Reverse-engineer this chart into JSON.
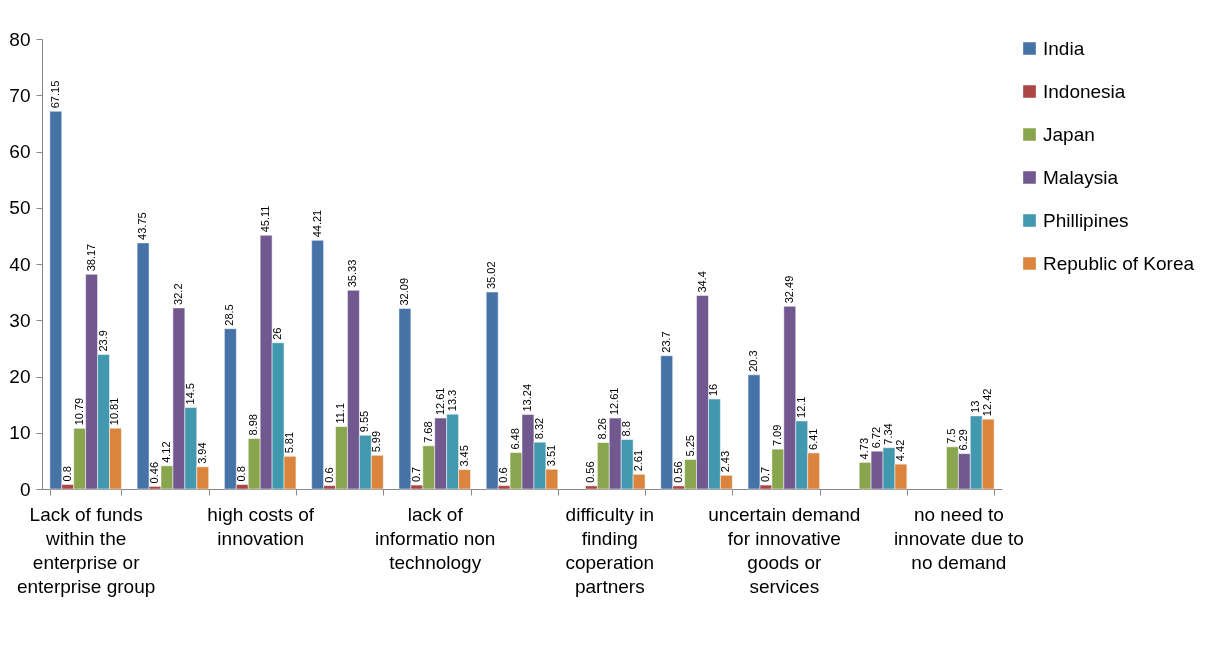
{
  "chart_data": {
    "type": "bar",
    "categories": [
      "Lack of funds within the enterprise or enterprise group",
      null,
      "high costs of innovation",
      null,
      "lack of informatio non technology",
      null,
      "difficulty in finding coperation partners",
      null,
      "uncertain demand for innovative goods or services",
      null,
      "no need to innovate due to no demand"
    ],
    "series": [
      {
        "name": "India",
        "color": "#4572a7",
        "values": [
          67.15,
          43.75,
          28.5,
          44.21,
          32.09,
          35.02,
          null,
          23.7,
          20.3,
          null,
          null
        ]
      },
      {
        "name": "Indonesia",
        "color": "#aa4643",
        "values": [
          0.8,
          0.46,
          0.8,
          0.6,
          0.7,
          0.6,
          0.56,
          0.56,
          0.7,
          null,
          null
        ]
      },
      {
        "name": "Japan",
        "color": "#89a54e",
        "values": [
          10.79,
          4.12,
          8.98,
          11.1,
          7.68,
          6.48,
          8.26,
          5.25,
          7.09,
          4.73,
          7.5
        ]
      },
      {
        "name": "Malaysia",
        "color": "#71588f",
        "values": [
          38.17,
          32.2,
          45.11,
          35.33,
          12.61,
          13.24,
          12.61,
          34.4,
          32.49,
          6.72,
          6.29
        ]
      },
      {
        "name": "Phillipines",
        "color": "#4198af",
        "values": [
          23.9,
          14.5,
          26,
          9.55,
          13.3,
          8.32,
          8.8,
          16,
          12.1,
          7.34,
          13
        ]
      },
      {
        "name": "Republic of Korea",
        "color": "#db843d",
        "values": [
          10.81,
          3.94,
          5.81,
          5.99,
          3.45,
          3.51,
          2.61,
          2.43,
          6.41,
          4.42,
          12.42
        ]
      }
    ],
    "ylim": [
      0,
      80
    ],
    "yticks": [
      0,
      10,
      20,
      30,
      40,
      50,
      60,
      70,
      80
    ],
    "data_labels": true,
    "legend": "right"
  }
}
